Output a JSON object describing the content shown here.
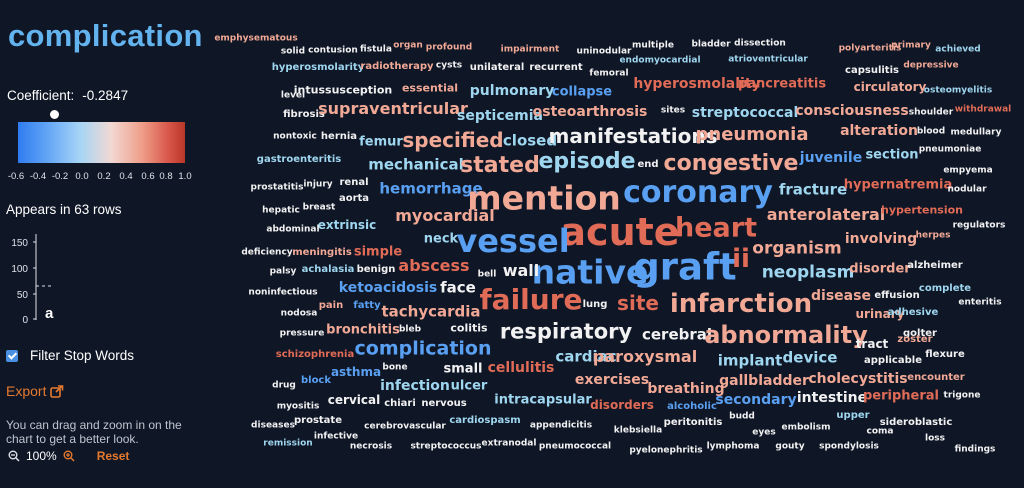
{
  "sidebar": {
    "title": "complication",
    "coefficient_label": "Coefficient:",
    "coefficient_value": "-0.2847",
    "colorbar": {
      "ticks": [
        "-0.6",
        "-0.4",
        "-0.2",
        "0.0",
        "0.2",
        "0.4",
        "0.6",
        "0.8",
        "1.0"
      ],
      "colors": [
        "#2f7cf0",
        "#a9d6f5",
        "#f2d8d2",
        "#ef9f8a",
        "#b93628"
      ],
      "marker_value": -0.2847
    },
    "appears_text": "Appears in 63 rows",
    "histogram": {
      "ticks": [
        "150",
        "100",
        "50",
        "0"
      ],
      "marker_label": "a"
    },
    "filter_label": "Filter Stop Words",
    "filter_checked": true,
    "export_label": "Export",
    "help_text": "You can drag and zoom in on the chart to get a better look.",
    "zoom_level": "100%",
    "reset_label": "Reset"
  },
  "cloud": {
    "colors": {
      "blue": "#5aa0f2",
      "lightblue": "#9fd6ef",
      "white": "#f2f2f2",
      "pink": "#f1a996",
      "red": "#e06b56"
    },
    "words": [
      {
        "t": "emphysematous",
        "c": "pink"
      },
      {
        "t": "solid",
        "c": "white"
      },
      {
        "t": "contusion",
        "c": "white"
      },
      {
        "t": "fistula",
        "c": "white"
      },
      {
        "t": "organ",
        "c": "pink"
      },
      {
        "t": "profound",
        "c": "pink"
      },
      {
        "t": "impairment",
        "c": "pink"
      },
      {
        "t": "uninodular",
        "c": "white"
      },
      {
        "t": "multiple",
        "c": "white"
      },
      {
        "t": "bladder",
        "c": "white"
      },
      {
        "t": "dissection",
        "c": "white"
      },
      {
        "t": "polyarteritis",
        "c": "pink"
      },
      {
        "t": "primary",
        "c": "pink"
      },
      {
        "t": "achieved",
        "c": "lightblue"
      },
      {
        "t": "hyperosmolarity",
        "c": "lightblue"
      },
      {
        "t": "radiotherapy",
        "c": "pink"
      },
      {
        "t": "cysts",
        "c": "white"
      },
      {
        "t": "unilateral",
        "c": "white"
      },
      {
        "t": "recurrent",
        "c": "white"
      },
      {
        "t": "endomyocardial",
        "c": "lightblue"
      },
      {
        "t": "atrioventricular",
        "c": "lightblue"
      },
      {
        "t": "capsulitis",
        "c": "white"
      },
      {
        "t": "depressive",
        "c": "pink"
      },
      {
        "t": "femoral",
        "c": "white"
      },
      {
        "t": "level",
        "c": "white"
      },
      {
        "t": "intussusception",
        "c": "white"
      },
      {
        "t": "essential",
        "c": "pink"
      },
      {
        "t": "pulmonary",
        "c": "lightblue"
      },
      {
        "t": "collapse",
        "c": "blue"
      },
      {
        "t": "hyperosmolality",
        "c": "red"
      },
      {
        "t": "pancreatitis",
        "c": "red"
      },
      {
        "t": "circulatory",
        "c": "pink"
      },
      {
        "t": "osteomyelitis",
        "c": "lightblue"
      },
      {
        "t": "fibrosis",
        "c": "white"
      },
      {
        "t": "supraventricular",
        "c": "pink"
      },
      {
        "t": "septicemia",
        "c": "lightblue"
      },
      {
        "t": "osteoarthrosis",
        "c": "pink"
      },
      {
        "t": "sites",
        "c": "white"
      },
      {
        "t": "streptococcal",
        "c": "lightblue"
      },
      {
        "t": "consciousness",
        "c": "pink"
      },
      {
        "t": "shoulder",
        "c": "white"
      },
      {
        "t": "withdrawal",
        "c": "red"
      },
      {
        "t": "nontoxic",
        "c": "white"
      },
      {
        "t": "hernia",
        "c": "white"
      },
      {
        "t": "femur",
        "c": "lightblue"
      },
      {
        "t": "specified",
        "c": "pink"
      },
      {
        "t": "closed",
        "c": "lightblue"
      },
      {
        "t": "manifestations",
        "c": "white"
      },
      {
        "t": "pneumonia",
        "c": "pink"
      },
      {
        "t": "alteration",
        "c": "pink"
      },
      {
        "t": "blood",
        "c": "white"
      },
      {
        "t": "medullary",
        "c": "white"
      },
      {
        "t": "pneumoniae",
        "c": "white"
      },
      {
        "t": "gastroenteritis",
        "c": "lightblue"
      },
      {
        "t": "mechanical",
        "c": "lightblue"
      },
      {
        "t": "stated",
        "c": "pink"
      },
      {
        "t": "episode",
        "c": "lightblue"
      },
      {
        "t": "end",
        "c": "white"
      },
      {
        "t": "congestive",
        "c": "pink"
      },
      {
        "t": "juvenile",
        "c": "blue"
      },
      {
        "t": "section",
        "c": "lightblue"
      },
      {
        "t": "empyema",
        "c": "white"
      },
      {
        "t": "prostatitis",
        "c": "white"
      },
      {
        "t": "injury",
        "c": "white"
      },
      {
        "t": "renal",
        "c": "white"
      },
      {
        "t": "hemorrhage",
        "c": "blue"
      },
      {
        "t": "mention",
        "c": "pink"
      },
      {
        "t": "coronary",
        "c": "blue"
      },
      {
        "t": "fracture",
        "c": "lightblue"
      },
      {
        "t": "hypernatremia",
        "c": "red"
      },
      {
        "t": "nodular",
        "c": "white"
      },
      {
        "t": "aorta",
        "c": "white"
      },
      {
        "t": "hepatic",
        "c": "white"
      },
      {
        "t": "breast",
        "c": "white"
      },
      {
        "t": "extrinsic",
        "c": "lightblue"
      },
      {
        "t": "myocardial",
        "c": "pink"
      },
      {
        "t": "acute",
        "c": "red"
      },
      {
        "t": "heart",
        "c": "red"
      },
      {
        "t": "anterolateral",
        "c": "pink"
      },
      {
        "t": "hypertension",
        "c": "red"
      },
      {
        "t": "regulators",
        "c": "white"
      },
      {
        "t": "abdominal",
        "c": "white"
      },
      {
        "t": "neck",
        "c": "lightblue"
      },
      {
        "t": "vessel",
        "c": "blue"
      },
      {
        "t": "involving",
        "c": "pink"
      },
      {
        "t": "herpes",
        "c": "pink"
      },
      {
        "t": "deficiency",
        "c": "white"
      },
      {
        "t": "meningitis",
        "c": "pink"
      },
      {
        "t": "simple",
        "c": "red"
      },
      {
        "t": "abscess",
        "c": "red"
      },
      {
        "t": "native",
        "c": "blue"
      },
      {
        "t": "graft",
        "c": "blue"
      },
      {
        "t": "ii",
        "c": "red"
      },
      {
        "t": "organism",
        "c": "pink"
      },
      {
        "t": "palsy",
        "c": "white"
      },
      {
        "t": "achalasia",
        "c": "lightblue"
      },
      {
        "t": "benign",
        "c": "white"
      },
      {
        "t": "bell",
        "c": "white"
      },
      {
        "t": "wall",
        "c": "white"
      },
      {
        "t": "neoplasm",
        "c": "lightblue"
      },
      {
        "t": "disorder",
        "c": "pink"
      },
      {
        "t": "alzheimer",
        "c": "white"
      },
      {
        "t": "ketoacidosis",
        "c": "blue"
      },
      {
        "t": "face",
        "c": "white"
      },
      {
        "t": "complete",
        "c": "lightblue"
      },
      {
        "t": "noninfectious",
        "c": "white"
      },
      {
        "t": "failure",
        "c": "red"
      },
      {
        "t": "site",
        "c": "red"
      },
      {
        "t": "infarction",
        "c": "pink"
      },
      {
        "t": "disease",
        "c": "pink"
      },
      {
        "t": "effusion",
        "c": "white"
      },
      {
        "t": "enteritis",
        "c": "white"
      },
      {
        "t": "pain",
        "c": "pink"
      },
      {
        "t": "fatty",
        "c": "blue"
      },
      {
        "t": "tachycardia",
        "c": "pink"
      },
      {
        "t": "lung",
        "c": "white"
      },
      {
        "t": "urinary",
        "c": "pink"
      },
      {
        "t": "adhesive",
        "c": "lightblue"
      },
      {
        "t": "nodosa",
        "c": "white"
      },
      {
        "t": "bronchitis",
        "c": "pink"
      },
      {
        "t": "bleb",
        "c": "white"
      },
      {
        "t": "colitis",
        "c": "white"
      },
      {
        "t": "respiratory",
        "c": "white"
      },
      {
        "t": "cerebral",
        "c": "white"
      },
      {
        "t": "abnormality",
        "c": "pink"
      },
      {
        "t": "golter",
        "c": "white"
      },
      {
        "t": "pressure",
        "c": "white"
      },
      {
        "t": "tract",
        "c": "white"
      },
      {
        "t": "zoster",
        "c": "pink"
      },
      {
        "t": "schizophrenia",
        "c": "red"
      },
      {
        "t": "complication",
        "c": "blue"
      },
      {
        "t": "cardiac",
        "c": "lightblue"
      },
      {
        "t": "paroxysmal",
        "c": "pink"
      },
      {
        "t": "implant",
        "c": "lightblue"
      },
      {
        "t": "device",
        "c": "lightblue"
      },
      {
        "t": "applicable",
        "c": "white"
      },
      {
        "t": "flexure",
        "c": "white"
      },
      {
        "t": "asthma",
        "c": "blue"
      },
      {
        "t": "bone",
        "c": "white"
      },
      {
        "t": "small",
        "c": "white"
      },
      {
        "t": "cellulitis",
        "c": "red"
      },
      {
        "t": "cholecystitis",
        "c": "pink"
      },
      {
        "t": "encounter",
        "c": "pink"
      },
      {
        "t": "drug",
        "c": "white"
      },
      {
        "t": "block",
        "c": "blue"
      },
      {
        "t": "infection",
        "c": "lightblue"
      },
      {
        "t": "ulcer",
        "c": "lightblue"
      },
      {
        "t": "exercises",
        "c": "pink"
      },
      {
        "t": "breathing",
        "c": "pink"
      },
      {
        "t": "gallbladder",
        "c": "pink"
      },
      {
        "t": "trigone",
        "c": "white"
      },
      {
        "t": "cervical",
        "c": "white"
      },
      {
        "t": "chiari",
        "c": "white"
      },
      {
        "t": "nervous",
        "c": "white"
      },
      {
        "t": "intracapsular",
        "c": "lightblue"
      },
      {
        "t": "disorders",
        "c": "red"
      },
      {
        "t": "secondary",
        "c": "blue"
      },
      {
        "t": "intestine",
        "c": "white"
      },
      {
        "t": "peripheral",
        "c": "red"
      },
      {
        "t": "myositis",
        "c": "white"
      },
      {
        "t": "alcoholic",
        "c": "blue"
      },
      {
        "t": "budd",
        "c": "white"
      },
      {
        "t": "upper",
        "c": "lightblue"
      },
      {
        "t": "diseases",
        "c": "white"
      },
      {
        "t": "prostate",
        "c": "white"
      },
      {
        "t": "cardiospasm",
        "c": "lightblue"
      },
      {
        "t": "peritonitis",
        "c": "white"
      },
      {
        "t": "embolism",
        "c": "white"
      },
      {
        "t": "sideroblastic",
        "c": "white"
      },
      {
        "t": "cerebrovascular",
        "c": "white"
      },
      {
        "t": "appendicitis",
        "c": "white"
      },
      {
        "t": "klebsiella",
        "c": "white"
      },
      {
        "t": "eyes",
        "c": "white"
      },
      {
        "t": "coma",
        "c": "white"
      },
      {
        "t": "remission",
        "c": "lightblue"
      },
      {
        "t": "infective",
        "c": "white"
      },
      {
        "t": "necrosis",
        "c": "white"
      },
      {
        "t": "streptococcus",
        "c": "white"
      },
      {
        "t": "extranodal",
        "c": "white"
      },
      {
        "t": "pneumococcal",
        "c": "white"
      },
      {
        "t": "loss",
        "c": "white"
      },
      {
        "t": "pyelonephritis",
        "c": "white"
      },
      {
        "t": "lymphoma",
        "c": "white"
      },
      {
        "t": "gouty",
        "c": "white"
      },
      {
        "t": "spondylosis",
        "c": "white"
      },
      {
        "t": "findings",
        "c": "white"
      }
    ]
  }
}
